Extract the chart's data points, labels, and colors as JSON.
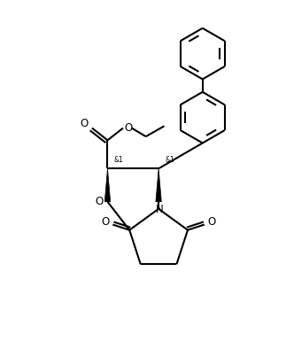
{
  "background_color": "#ffffff",
  "line_color": "#000000",
  "line_width": 1.5,
  "figsize": [
    3.23,
    4.03
  ],
  "dpi": 100,
  "xlim": [
    0,
    10
  ],
  "ylim": [
    0,
    12.4
  ]
}
